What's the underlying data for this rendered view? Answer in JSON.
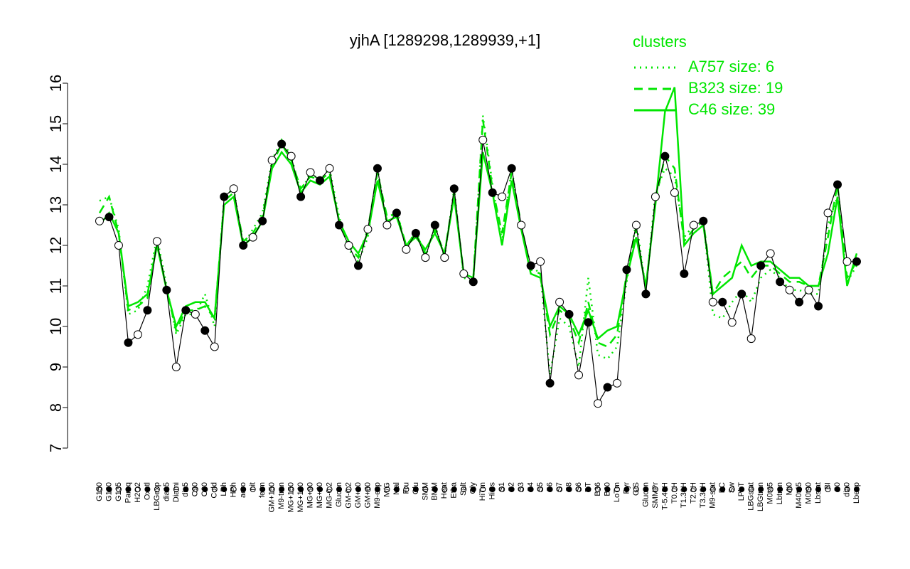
{
  "chart_data": {
    "type": "line",
    "title": "yjhA [1289298,1289939,+1]",
    "legend_title": "clusters",
    "color": "#000000",
    "ylim": [
      7,
      16
    ],
    "yticks": [
      7,
      8,
      9,
      10,
      11,
      12,
      13,
      14,
      15,
      16
    ],
    "categories": [
      "G150",
      "G180",
      "G135",
      "Paraq",
      "H2O2",
      "Oxctl",
      "LBGexp",
      "dia15",
      "Diami",
      "dia5",
      "C90",
      "C30",
      "Cold",
      "LPh",
      "HPh",
      "aero",
      "nit",
      "ferm",
      "GM+150",
      "M9-tran",
      "MG+150",
      "MG+120",
      "MG+90",
      "MG+60",
      "MG-0.2",
      "Glucon",
      "GM-0.2",
      "GM+10",
      "GM+60",
      "M9-exp",
      "M/G",
      "Mal",
      "Fru",
      "Glu",
      "SMM",
      "BMM",
      "Heat",
      "Etha",
      "Salt",
      "Gly",
      "HiTm",
      "HiOs",
      "S1",
      "S2",
      "S3",
      "S4",
      "S5",
      "S6",
      "S7",
      "S8",
      "S6",
      "BT",
      "B36",
      "B60",
      "LoTm",
      "Pyr",
      "G/S",
      "Glucon",
      "SMMPr",
      "T-5.40H",
      "T0.0H",
      "T1.30H",
      "T2.0H",
      "T3.30H",
      "M9-stat",
      "BC",
      "Sw",
      "LPhT",
      "LBGstat",
      "LBGtran",
      "M0t45",
      "Lbtran",
      "Mt0",
      "M40t45",
      "M0t90",
      "Lbstat",
      "BI",
      "S0",
      "dia0",
      "Lbexp"
    ],
    "values": [
      12.6,
      12.7,
      12.0,
      9.6,
      9.8,
      10.4,
      12.1,
      10.9,
      9.0,
      10.4,
      10.3,
      9.9,
      9.5,
      13.2,
      13.4,
      12.0,
      12.2,
      12.6,
      14.1,
      14.5,
      14.2,
      13.2,
      13.8,
      13.6,
      13.9,
      12.5,
      12.0,
      11.5,
      12.4,
      13.9,
      12.5,
      12.8,
      11.9,
      12.3,
      11.7,
      12.5,
      11.7,
      13.4,
      11.3,
      11.1,
      14.6,
      13.3,
      13.2,
      13.9,
      12.5,
      11.5,
      11.6,
      8.6,
      10.6,
      10.3,
      8.8,
      10.1,
      8.1,
      8.5,
      8.6,
      11.4,
      12.5,
      10.8,
      13.2,
      14.2,
      13.3,
      11.3,
      12.5,
      12.6,
      10.6,
      10.6,
      10.1,
      10.8,
      9.7,
      11.5,
      11.8,
      11.1,
      10.9,
      10.6,
      10.9,
      10.5,
      12.8,
      13.5,
      11.6,
      11.6
    ],
    "series": [
      {
        "name": "A757 size: 6",
        "color": "#00e600",
        "dash": "dotted",
        "values": [
          13.1,
          13.2,
          12.4,
          10.3,
          10.4,
          11.0,
          12.2,
          11.0,
          9.8,
          10.3,
          10.3,
          10.8,
          10.0,
          13.2,
          13.4,
          12.0,
          12.4,
          12.8,
          14.1,
          14.6,
          14.2,
          13.3,
          13.8,
          13.6,
          13.9,
          12.7,
          11.9,
          11.6,
          12.2,
          13.9,
          12.5,
          12.9,
          11.9,
          12.4,
          11.7,
          12.5,
          11.7,
          13.4,
          11.2,
          11.1,
          15.2,
          13.5,
          12.1,
          13.9,
          12.4,
          11.5,
          11.3,
          8.8,
          10.2,
          10.0,
          9.0,
          11.2,
          9.3,
          9.2,
          9.5,
          11.1,
          12.6,
          10.9,
          13.3,
          13.9,
          13.7,
          12.2,
          12.5,
          12.6,
          10.3,
          10.2,
          10.6,
          10.9,
          10.6,
          11.2,
          11.4,
          11.2,
          10.9,
          10.9,
          10.8,
          10.8,
          12.5,
          13.2,
          11.1,
          11.5
        ]
      },
      {
        "name": "B323 size: 19",
        "color": "#00e600",
        "dash": "dashed",
        "values": [
          12.8,
          13.2,
          12.3,
          10.4,
          10.5,
          10.7,
          12.1,
          10.9,
          9.9,
          10.4,
          10.4,
          10.5,
          10.2,
          13.1,
          13.3,
          12.1,
          12.3,
          12.7,
          14.0,
          14.5,
          14.1,
          13.4,
          13.7,
          13.6,
          13.8,
          12.6,
          12.0,
          11.7,
          12.4,
          13.8,
          12.7,
          12.8,
          12.0,
          12.3,
          11.8,
          12.4,
          11.8,
          13.3,
          11.3,
          11.2,
          15.1,
          13.4,
          12.3,
          13.8,
          12.5,
          11.4,
          11.3,
          9.8,
          10.4,
          10.2,
          9.6,
          10.6,
          9.6,
          9.5,
          9.8,
          11.3,
          12.4,
          10.9,
          13.1,
          14.2,
          13.9,
          12.1,
          12.4,
          12.6,
          10.8,
          11.2,
          11.4,
          11.6,
          11.2,
          11.5,
          11.5,
          11.3,
          11.1,
          11.1,
          11.0,
          11.0,
          12.2,
          13.5,
          11.2,
          11.6
        ]
      },
      {
        "name": "C46 size: 39",
        "color": "#00e600",
        "dash": "solid",
        "values": [
          12.5,
          12.8,
          12.3,
          10.5,
          10.6,
          10.8,
          12.0,
          10.9,
          10.0,
          10.5,
          10.6,
          10.6,
          10.2,
          13.0,
          13.2,
          12.0,
          12.2,
          12.6,
          13.9,
          14.3,
          14.0,
          13.3,
          13.6,
          13.5,
          13.7,
          12.6,
          12.1,
          11.8,
          12.3,
          13.6,
          12.6,
          12.7,
          12.0,
          12.2,
          11.9,
          12.3,
          11.8,
          13.2,
          11.3,
          11.2,
          14.3,
          13.3,
          12.0,
          13.6,
          12.4,
          11.3,
          11.2,
          10.0,
          10.5,
          10.3,
          9.8,
          10.4,
          9.7,
          9.9,
          10.0,
          11.2,
          12.2,
          11.0,
          13.0,
          15.3,
          15.9,
          12.0,
          12.3,
          12.5,
          10.8,
          11.0,
          11.2,
          12.0,
          11.5,
          11.6,
          11.6,
          11.4,
          11.2,
          11.2,
          11.0,
          11.0,
          11.8,
          13.2,
          11.0,
          11.8
        ]
      }
    ]
  }
}
